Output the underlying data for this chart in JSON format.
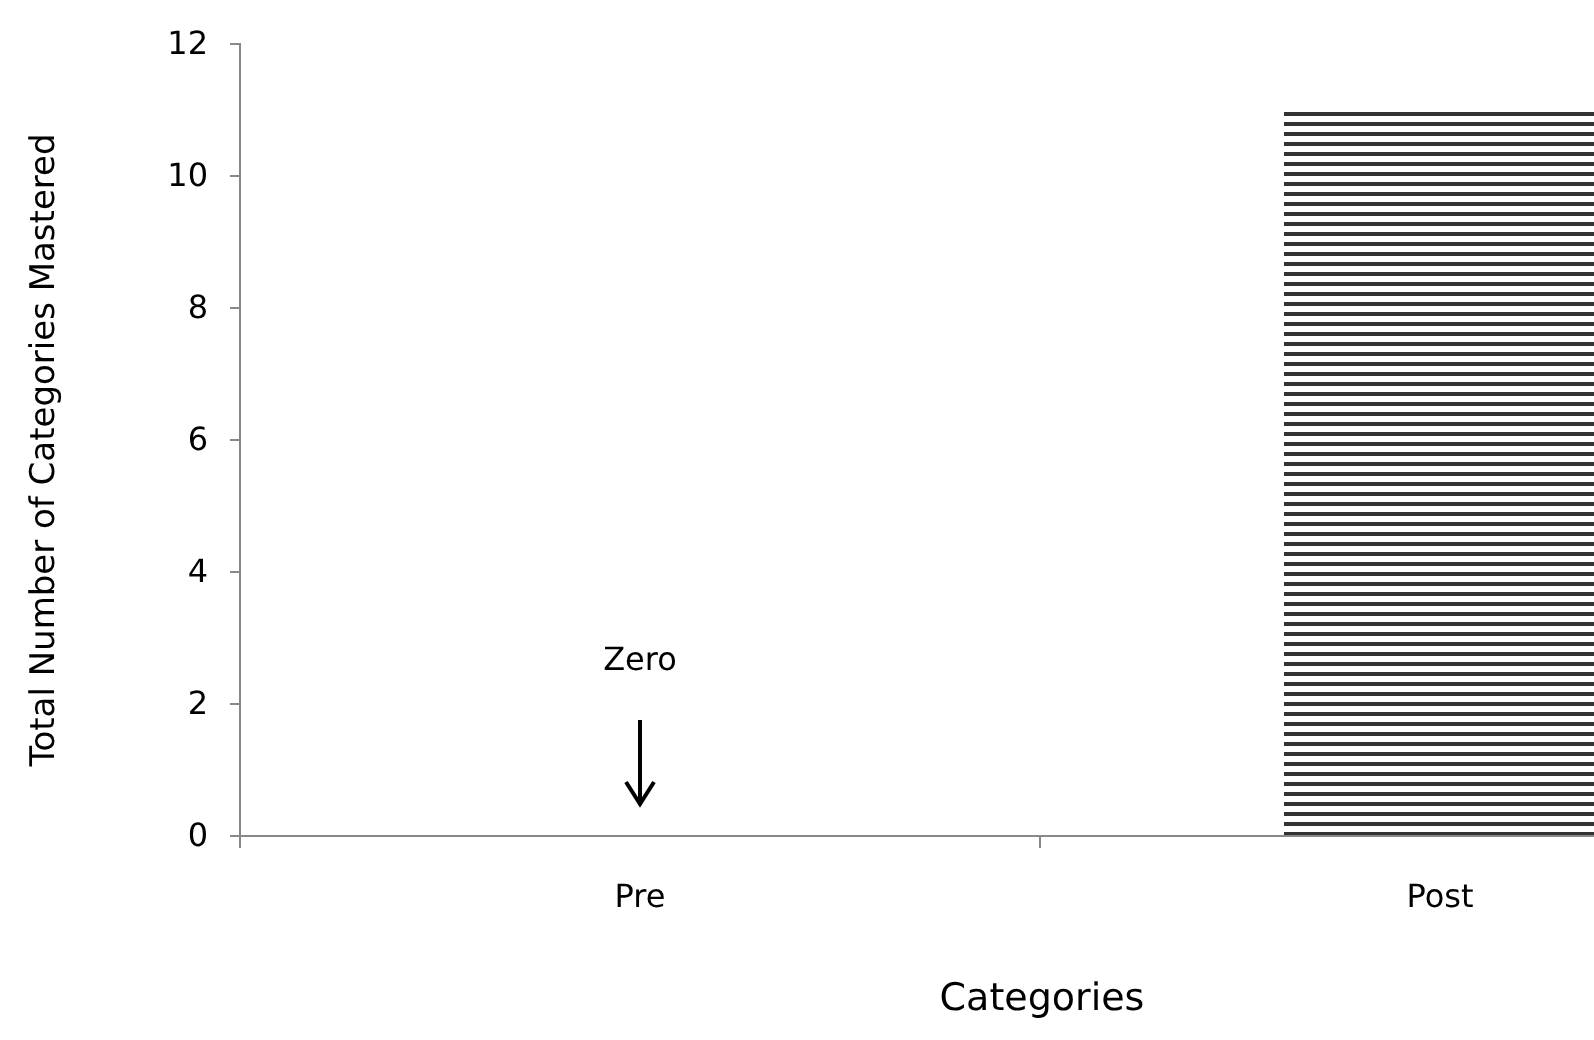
{
  "chart_data": {
    "type": "bar",
    "xlabel": "Categories",
    "ylabel": "Total Number of Categories Mastered",
    "categories": [
      "Pre",
      "Post"
    ],
    "values": [
      0,
      11
    ],
    "color": "#333333",
    "ylim": [
      0,
      12
    ],
    "yticks": [
      0,
      2,
      4,
      6,
      8,
      10,
      12
    ],
    "grid": false,
    "annotations": [
      "Zero"
    ]
  }
}
